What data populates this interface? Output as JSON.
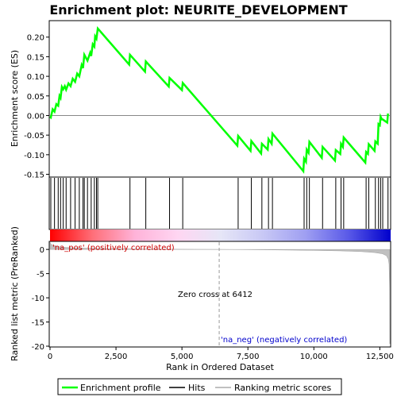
{
  "chart_data": {
    "type": "line",
    "title": "Enrichment plot: NEURITE_DEVELOPMENT",
    "top_panel": {
      "ylabel": "Enrichment score (ES)",
      "ylim": [
        -0.155,
        0.24
      ],
      "yticks": [
        -0.15,
        -0.1,
        -0.05,
        0.0,
        0.05,
        0.1,
        0.15,
        0.2
      ],
      "ytick_labels": [
        "-0.15",
        "-0.10",
        "-0.05",
        "0.00",
        "0.05",
        "0.10",
        "0.15",
        "0.20"
      ],
      "series": [
        {
          "name": "Enrichment profile",
          "color": "#00ff00",
          "x": [
            0,
            30,
            100,
            170,
            240,
            310,
            360,
            400,
            450,
            500,
            560,
            610,
            700,
            780,
            860,
            950,
            1030,
            1110,
            1200,
            1250,
            1300,
            1420,
            1520,
            1560,
            1620,
            1680,
            1710,
            1760,
            1810,
            3000,
            3030,
            3600,
            3630,
            4500,
            4530,
            5000,
            5030,
            7100,
            7130,
            7600,
            7630,
            8000,
            8030,
            8250,
            8280,
            8400,
            8430,
            9600,
            9630,
            9700,
            9730,
            9800,
            9830,
            10300,
            10330,
            10800,
            10830,
            11000,
            11030,
            11100,
            11130,
            11950,
            11980,
            12050,
            12080,
            12300,
            12330,
            12420,
            12450,
            12500,
            12530,
            12580,
            12610,
            12780,
            12810
          ],
          "y": [
            -0.003,
            -0.005,
            0.016,
            0.01,
            0.029,
            0.025,
            0.05,
            0.045,
            0.073,
            0.067,
            0.075,
            0.066,
            0.082,
            0.075,
            0.094,
            0.086,
            0.107,
            0.1,
            0.129,
            0.121,
            0.155,
            0.14,
            0.16,
            0.152,
            0.182,
            0.176,
            0.202,
            0.196,
            0.222,
            0.13,
            0.155,
            0.112,
            0.138,
            0.074,
            0.096,
            0.065,
            0.083,
            -0.077,
            -0.052,
            -0.09,
            -0.065,
            -0.097,
            -0.072,
            -0.087,
            -0.06,
            -0.072,
            -0.046,
            -0.142,
            -0.11,
            -0.118,
            -0.087,
            -0.095,
            -0.067,
            -0.108,
            -0.08,
            -0.115,
            -0.088,
            -0.098,
            -0.072,
            -0.08,
            -0.056,
            -0.12,
            -0.093,
            -0.098,
            -0.073,
            -0.09,
            -0.066,
            -0.072,
            -0.022,
            -0.025,
            -0.003,
            -0.01,
            -0.01,
            -0.018,
            0.005
          ]
        }
      ]
    },
    "hits": [
      30,
      170,
      310,
      400,
      500,
      610,
      780,
      950,
      1110,
      1250,
      1300,
      1420,
      1560,
      1680,
      1760,
      1810,
      3030,
      3630,
      4530,
      5030,
      7130,
      7630,
      8030,
      8280,
      8430,
      9630,
      9730,
      9830,
      10330,
      10830,
      11030,
      11130,
      11980,
      12080,
      12330,
      12450,
      12530,
      12610,
      12810
    ],
    "colorbar": {
      "stops": [
        "#ff0000",
        "#ff6f79",
        "#ffb3d9",
        "#ffd6f2",
        "#e6e6f7",
        "#c8c8f5",
        "#9f9ff2",
        "#5a5ae8",
        "#0000cc"
      ],
      "zero_cross_fraction": 0.5
    },
    "bottom_panel": {
      "ylabel": "Ranked list metric (PreRanked)",
      "xlabel": "Rank in Ordered Dataset",
      "ylim": [
        -20,
        1.5
      ],
      "yticks": [
        0,
        -5,
        -10,
        -15,
        -20
      ],
      "ytick_labels": [
        "0",
        "-5",
        "-10",
        "-15",
        "-20"
      ],
      "metric_x": [
        0,
        20,
        60,
        150,
        300,
        500,
        800,
        1200,
        1800,
        2600,
        3500,
        4500,
        5500,
        6412,
        7200,
        8000,
        9000,
        10000,
        11000,
        11800,
        12300,
        12600,
        12750,
        12820,
        12850,
        12870,
        12880
      ],
      "metric_y": [
        1.5,
        1.2,
        1.0,
        0.8,
        0.6,
        0.45,
        0.35,
        0.27,
        0.2,
        0.14,
        0.09,
        0.05,
        0.02,
        0.0,
        -0.03,
        -0.07,
        -0.13,
        -0.2,
        -0.3,
        -0.45,
        -0.65,
        -0.9,
        -1.3,
        -2.0,
        -3.0,
        -8.0,
        -19.5
      ],
      "pos_label": "'na_pos' (positively correlated)",
      "neg_label": "'na_neg' (negatively correlated)",
      "zero_cross_label": "Zero cross at 6412",
      "zero_cross": 6412
    },
    "xlim": [
      0,
      12880
    ],
    "xticks": [
      0,
      2500,
      5000,
      7500,
      10000,
      12500
    ],
    "xtick_labels": [
      "0",
      "2,500",
      "5,000",
      "7,500",
      "10,000",
      "12,500"
    ],
    "legend": {
      "placement": "bottom",
      "entries": [
        {
          "label": "Enrichment profile",
          "color": "#00ff00"
        },
        {
          "label": "Hits",
          "color": "#000000"
        },
        {
          "label": "Ranking metric scores",
          "color": "#c0c0c0"
        }
      ]
    }
  }
}
